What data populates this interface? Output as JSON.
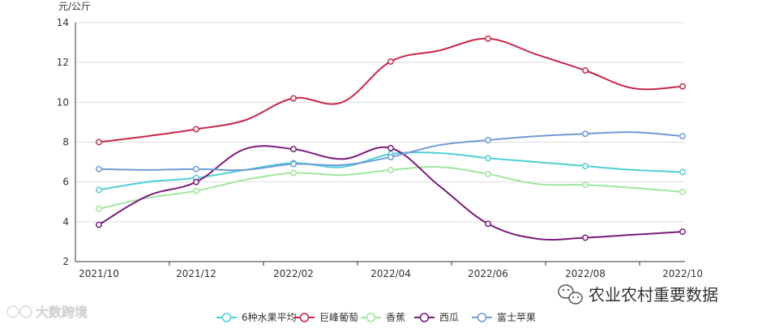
{
  "chart_data": {
    "type": "line",
    "ylabel": "元/公斤",
    "ylim": [
      2,
      14
    ],
    "yticks": [
      2,
      4,
      6,
      8,
      10,
      12,
      14
    ],
    "x": [
      "2021/10",
      "2021/11",
      "2021/12",
      "2022/01",
      "2022/02",
      "2022/03",
      "2022/04",
      "2022/05",
      "2022/06",
      "2022/07",
      "2022/08",
      "2022/09",
      "2022/10"
    ],
    "xtick_labels": [
      "2021/10",
      "2021/12",
      "2022/02",
      "2022/04",
      "2022/06",
      "2022/08",
      "2022/10"
    ],
    "grid": "horizontal",
    "legend_position": "bottom",
    "series": [
      {
        "name": "6种水果平均",
        "color": "#4dd0d4",
        "values": [
          5.6,
          6.0,
          6.2,
          6.6,
          6.95,
          6.75,
          7.4,
          7.45,
          7.2,
          7.0,
          6.8,
          6.6,
          6.5
        ],
        "marked": [
          0,
          2,
          4,
          6,
          8,
          10,
          12
        ]
      },
      {
        "name": "巨峰葡萄",
        "color": "#c9264a",
        "values": [
          8.0,
          8.3,
          8.65,
          9.1,
          10.2,
          10.0,
          12.05,
          12.6,
          13.2,
          12.4,
          11.6,
          10.7,
          10.8
        ],
        "marked": [
          0,
          2,
          4,
          6,
          8,
          10,
          12
        ]
      },
      {
        "name": "香蕉",
        "color": "#9ee69e",
        "values": [
          4.65,
          5.2,
          5.55,
          6.1,
          6.45,
          6.35,
          6.6,
          6.75,
          6.4,
          5.9,
          5.85,
          5.7,
          5.5
        ],
        "marked": [
          0,
          2,
          4,
          6,
          8,
          10,
          12
        ]
      },
      {
        "name": "西瓜",
        "color": "#7b1a7b",
        "values": [
          3.85,
          5.3,
          6.0,
          7.65,
          7.65,
          7.15,
          7.7,
          5.8,
          3.9,
          3.15,
          3.2,
          3.35,
          3.5
        ],
        "marked": [
          0,
          2,
          4,
          6,
          8,
          10,
          12
        ]
      },
      {
        "name": "富士苹果",
        "color": "#6e9bd8",
        "values": [
          6.65,
          6.6,
          6.65,
          6.6,
          6.9,
          6.85,
          7.25,
          7.85,
          8.1,
          8.3,
          8.42,
          8.5,
          8.3
        ],
        "marked": [
          0,
          2,
          4,
          6,
          8,
          10,
          12
        ]
      }
    ]
  },
  "watermarks": {
    "left": "大数跨境",
    "right": "农业农村重要数据"
  }
}
